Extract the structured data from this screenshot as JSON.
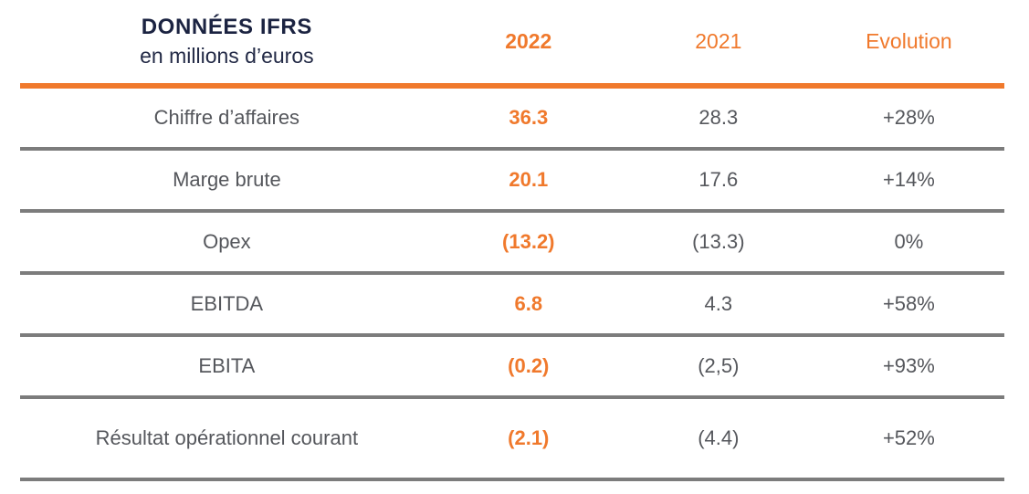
{
  "header": {
    "title": "DONNÉES IFRS",
    "subtitle": "en millions d’euros",
    "col_2022": "2022",
    "col_2021": "2021",
    "col_evolution": "Evolution"
  },
  "colors": {
    "accent_orange": "#F0792C",
    "title_navy": "#1B2341",
    "text_gray": "#55575C",
    "separator_gray": "#7C7C7C"
  },
  "chart_data": {
    "type": "table",
    "title": "DONNÉES IFRS",
    "subtitle": "en millions d’euros",
    "columns": [
      "2022",
      "2021",
      "Evolution"
    ],
    "rows": [
      {
        "label": "Chiffre d’affaires",
        "y2022": "36.3",
        "y2021": "28.3",
        "evolution": "+28%"
      },
      {
        "label": "Marge brute",
        "y2022": "20.1",
        "y2021": "17.6",
        "evolution": "+14%"
      },
      {
        "label": "Opex",
        "y2022": "(13.2)",
        "y2021": "(13.3)",
        "evolution": "0%"
      },
      {
        "label": "EBITDA",
        "y2022": "6.8",
        "y2021": "4.3",
        "evolution": "+58%"
      },
      {
        "label": "EBITA",
        "y2022": "(0.2)",
        "y2021": "(2,5)",
        "evolution": "+93%"
      },
      {
        "label": "Résultat opérationnel courant",
        "y2022": "(2.1)",
        "y2021": "(4.4)",
        "evolution": "+52%"
      }
    ]
  }
}
